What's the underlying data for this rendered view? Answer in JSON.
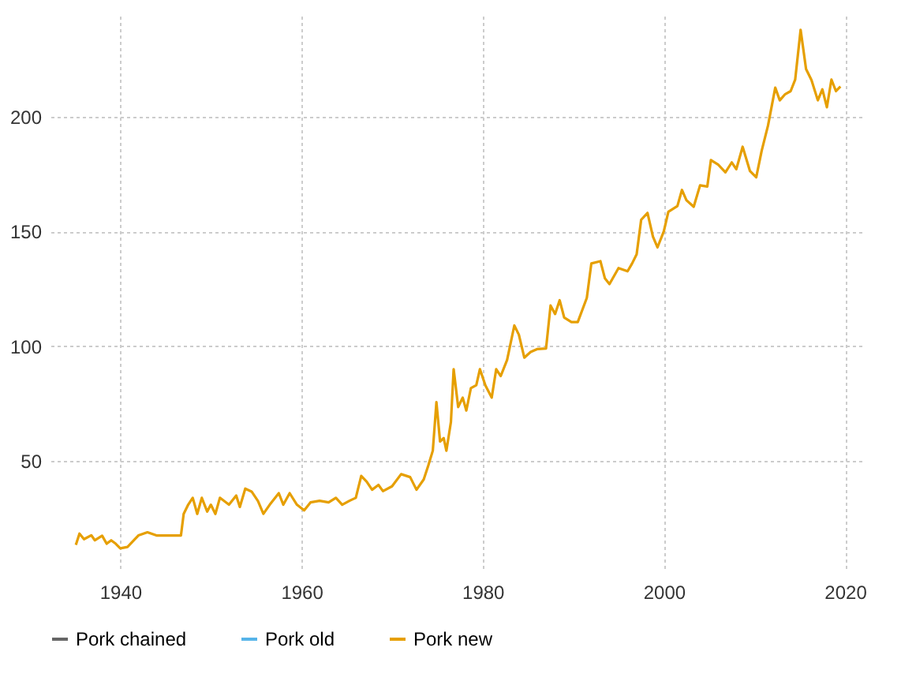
{
  "chart_data": {
    "type": "line",
    "x": [
      1935.1,
      1935.5,
      1936,
      1936.8,
      1937.2,
      1938,
      1938.5,
      1939,
      1939.5,
      1940,
      1940.8,
      1941.5,
      1942,
      1943,
      1944,
      1946.7,
      1947,
      1947.5,
      1948,
      1948.5,
      1949,
      1949.6,
      1950,
      1950.5,
      1951,
      1952,
      1952.8,
      1953.2,
      1953.8,
      1954.5,
      1955.2,
      1955.8,
      1956.5,
      1957.5,
      1958,
      1958.7,
      1959.5,
      1960.3,
      1961,
      1962,
      1963,
      1963.8,
      1964.5,
      1965.3,
      1966,
      1966.6,
      1967.2,
      1967.8,
      1968.5,
      1969,
      1970,
      1971,
      1972,
      1972.7,
      1973.5,
      1974,
      1974.5,
      1974.9,
      1975.3,
      1975.7,
      1976,
      1976.5,
      1976.8,
      1977.3,
      1977.8,
      1978.2,
      1978.7,
      1979.3,
      1979.7,
      1980.3,
      1981,
      1981.5,
      1982,
      1982.7,
      1983.5,
      1984,
      1984.6,
      1985.3,
      1986,
      1987,
      1987.5,
      1988,
      1988.5,
      1989,
      1989.8,
      1990.5,
      1991.5,
      1992,
      1993,
      1993.5,
      1994,
      1995,
      1996,
      1996.5,
      1997,
      1997.5,
      1998.2,
      1998.8,
      1999.3,
      2000,
      2000.5,
      2001.5,
      2002,
      2002.5,
      2003.3,
      2004,
      2004.8,
      2005.2,
      2006,
      2006.8,
      2007.5,
      2008,
      2008.7,
      2009.5,
      2010.2,
      2010.8,
      2011.5,
      2012.3,
      2012.8,
      2013.4,
      2014,
      2014.5,
      2015.1,
      2015.7,
      2016.3,
      2017,
      2017.5,
      2018,
      2018.5,
      2019,
      2019.5
    ],
    "series": [
      {
        "name": "Pork chained",
        "color": "#666666",
        "values": [
          null,
          null,
          null,
          null,
          null,
          null,
          null,
          null,
          null,
          null,
          null,
          null,
          null,
          null,
          null,
          null,
          null,
          null,
          null,
          null,
          null,
          null,
          null,
          null,
          null,
          null,
          null,
          null,
          null,
          null,
          null,
          null,
          null,
          null,
          null,
          null,
          null,
          null,
          null,
          null,
          null,
          null,
          null,
          null,
          null,
          null,
          null,
          null,
          null,
          null,
          null,
          null,
          null,
          null,
          null,
          null,
          null,
          null,
          null,
          null,
          null,
          null,
          null,
          null,
          null,
          null,
          null,
          null,
          null,
          null,
          null,
          null,
          null,
          null,
          null,
          null,
          null,
          null,
          null,
          null,
          null,
          null,
          null,
          null,
          null,
          null,
          null,
          null,
          null,
          null,
          null,
          null,
          null,
          null,
          null,
          null,
          null,
          null,
          null,
          null,
          null,
          null,
          null,
          null,
          null,
          null,
          null,
          null,
          null,
          null,
          null,
          null,
          null,
          null,
          null,
          null,
          null,
          null,
          null,
          null,
          null,
          null,
          null,
          null,
          null,
          null,
          null,
          null,
          null,
          null,
          null
        ]
      },
      {
        "name": "Pork old",
        "color": "#56b4e9",
        "values": [
          null,
          null,
          null,
          null,
          null,
          null,
          null,
          null,
          null,
          null,
          null,
          null,
          null,
          null,
          null,
          null,
          null,
          null,
          null,
          null,
          null,
          null,
          null,
          null,
          null,
          null,
          null,
          null,
          null,
          null,
          null,
          null,
          null,
          null,
          null,
          null,
          null,
          null,
          null,
          null,
          null,
          null,
          null,
          null,
          null,
          null,
          null,
          null,
          null,
          null,
          null,
          null,
          null,
          null,
          null,
          null,
          null,
          null,
          null,
          null,
          null,
          null,
          null,
          null,
          null,
          null,
          null,
          null,
          null,
          null,
          null,
          null,
          null,
          null,
          null,
          null,
          null,
          null,
          null,
          null,
          null,
          null,
          null,
          null,
          null,
          null,
          null,
          null,
          null,
          null,
          null,
          null,
          null,
          null,
          null,
          null,
          null,
          null,
          null,
          null,
          null,
          null,
          null,
          null,
          null,
          null,
          null,
          null,
          null,
          null,
          null,
          null,
          null,
          null,
          null,
          null,
          null,
          null,
          null,
          null,
          null,
          null,
          null,
          null,
          null,
          null,
          null,
          null,
          null,
          null,
          null
        ]
      },
      {
        "name": "Pork new",
        "color": "#e69f00",
        "values": [
          13.5,
          18.4,
          16,
          17.7,
          15.5,
          17.5,
          14,
          15.5,
          14,
          12,
          12.6,
          15.5,
          17.6,
          19,
          17.6,
          17.6,
          27,
          31,
          34,
          27,
          34,
          28,
          31,
          27,
          34,
          31,
          35,
          30,
          38,
          36.7,
          32.6,
          27,
          31,
          36,
          31,
          36,
          31,
          28.5,
          32,
          32.7,
          32,
          34,
          31,
          32.7,
          34,
          43.5,
          41,
          37.5,
          39.6,
          36.9,
          39,
          44.3,
          43,
          37.5,
          42,
          48,
          54.5,
          75.6,
          58.5,
          60,
          54.5,
          67,
          90,
          73.5,
          77.6,
          72,
          81.7,
          83,
          90,
          83,
          77.6,
          90,
          87,
          94,
          109,
          105,
          95,
          97.5,
          98.7,
          99,
          117.7,
          114,
          120,
          112.5,
          110.5,
          110.5,
          121,
          136,
          137,
          129.5,
          127,
          134,
          132.6,
          136,
          140,
          155,
          158,
          147.7,
          143,
          150,
          158.5,
          161,
          168,
          163.5,
          160.7,
          170,
          169.5,
          181,
          179,
          175.7,
          180,
          177,
          186.8,
          176.3,
          173.5,
          185,
          196,
          212.5,
          207,
          209.7,
          211,
          216,
          237.7,
          220.6,
          215.8,
          207,
          211.8,
          204,
          216,
          211,
          213
        ]
      }
    ],
    "xlim": [
      1932.3,
      2022
    ],
    "ylim": [
      2,
      243.8
    ],
    "xticks": [
      1940,
      1960,
      1980,
      2000,
      2020
    ],
    "yticks": [
      50,
      100,
      150,
      200
    ],
    "grid": true,
    "legend": "bottom",
    "line_style": "solid"
  }
}
